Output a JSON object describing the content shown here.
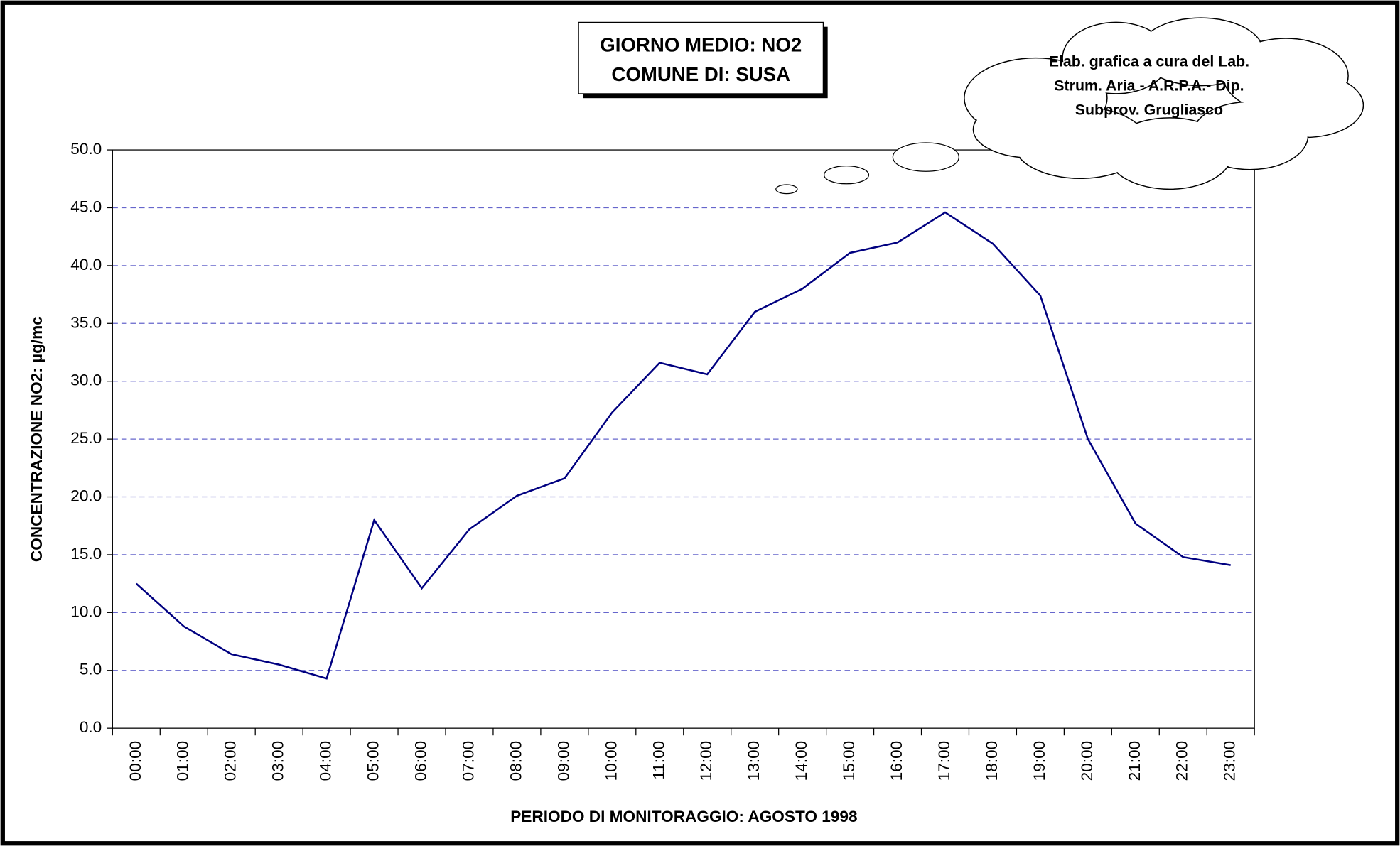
{
  "chart_data": {
    "type": "line",
    "title": [
      "GIORNO MEDIO: NO2",
      "COMUNE DI: SUSA"
    ],
    "annotation": [
      "Elab. grafica a cura del Lab.",
      "Strum. Aria - A.R.P.A.- Dip.",
      "Subprov. Grugliasco"
    ],
    "x_label": "PERIODO DI MONITORAGGIO: AGOSTO 1998",
    "y_label": "CONCENTRAZIONE NO2: µg/mc",
    "categories": [
      "00:00",
      "01:00",
      "02:00",
      "03:00",
      "04:00",
      "05:00",
      "06:00",
      "07:00",
      "08:00",
      "09:00",
      "10:00",
      "11:00",
      "12:00",
      "13:00",
      "14:00",
      "15:00",
      "16:00",
      "17:00",
      "18:00",
      "19:00",
      "20:00",
      "21:00",
      "22:00",
      "23:00"
    ],
    "values": [
      12.5,
      8.8,
      6.4,
      5.5,
      4.3,
      18.0,
      12.1,
      17.2,
      20.1,
      21.6,
      27.3,
      31.6,
      30.6,
      36.0,
      38.0,
      41.1,
      42.0,
      44.6,
      41.9,
      37.4,
      25.0,
      17.7,
      14.8,
      14.1
    ],
    "color": "#000080",
    "ylim": [
      0,
      50
    ],
    "yticks": [
      {
        "value": 0,
        "label": "0.0"
      },
      {
        "value": 5,
        "label": "5.0"
      },
      {
        "value": 10,
        "label": "10.0"
      },
      {
        "value": 15,
        "label": "15.0"
      },
      {
        "value": 20,
        "label": "20.0"
      },
      {
        "value": 25,
        "label": "25.0"
      },
      {
        "value": 30,
        "label": "30.0"
      },
      {
        "value": 35,
        "label": "35.0"
      },
      {
        "value": 40,
        "label": "40.0"
      },
      {
        "value": 45,
        "label": "45.0"
      },
      {
        "value": 50,
        "label": "50.0"
      }
    ],
    "grid": true,
    "grid_color": "#6666cc"
  }
}
